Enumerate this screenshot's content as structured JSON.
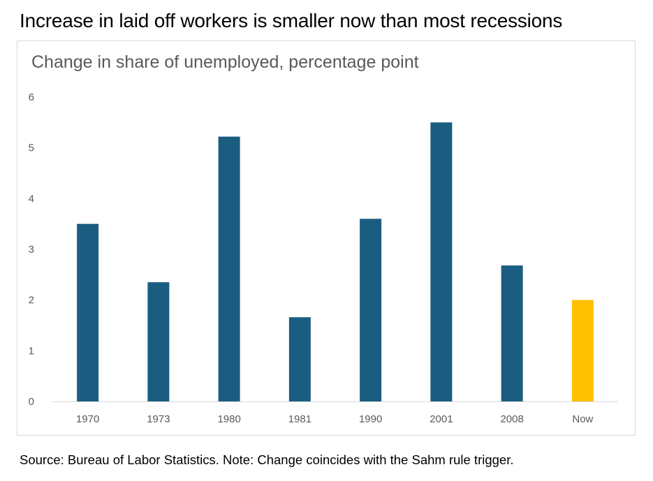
{
  "headline": "Increase in laid off workers is smaller now than most recessions",
  "footnote": "Source: Bureau of Labor Statistics. Note: Change coincides with the Sahm rule trigger.",
  "colors": {
    "bar": "#1b5d80",
    "highlight": "#ffc000",
    "axis": "#d9d9d9",
    "text": "#595959"
  },
  "chart_data": {
    "type": "bar",
    "title": "Change in share of unemployed, percentage point",
    "categories": [
      "1970",
      "1973",
      "1980",
      "1981",
      "1990",
      "2001",
      "2008",
      "Now"
    ],
    "values": [
      3.5,
      2.35,
      5.22,
      1.66,
      3.6,
      5.5,
      2.68,
      2.0
    ],
    "highlight": [
      "Now"
    ],
    "yticks": [
      "0",
      "1",
      "2",
      "3",
      "4",
      "5",
      "6"
    ],
    "ylim": [
      0,
      6
    ],
    "grid": false,
    "legend": "none"
  }
}
